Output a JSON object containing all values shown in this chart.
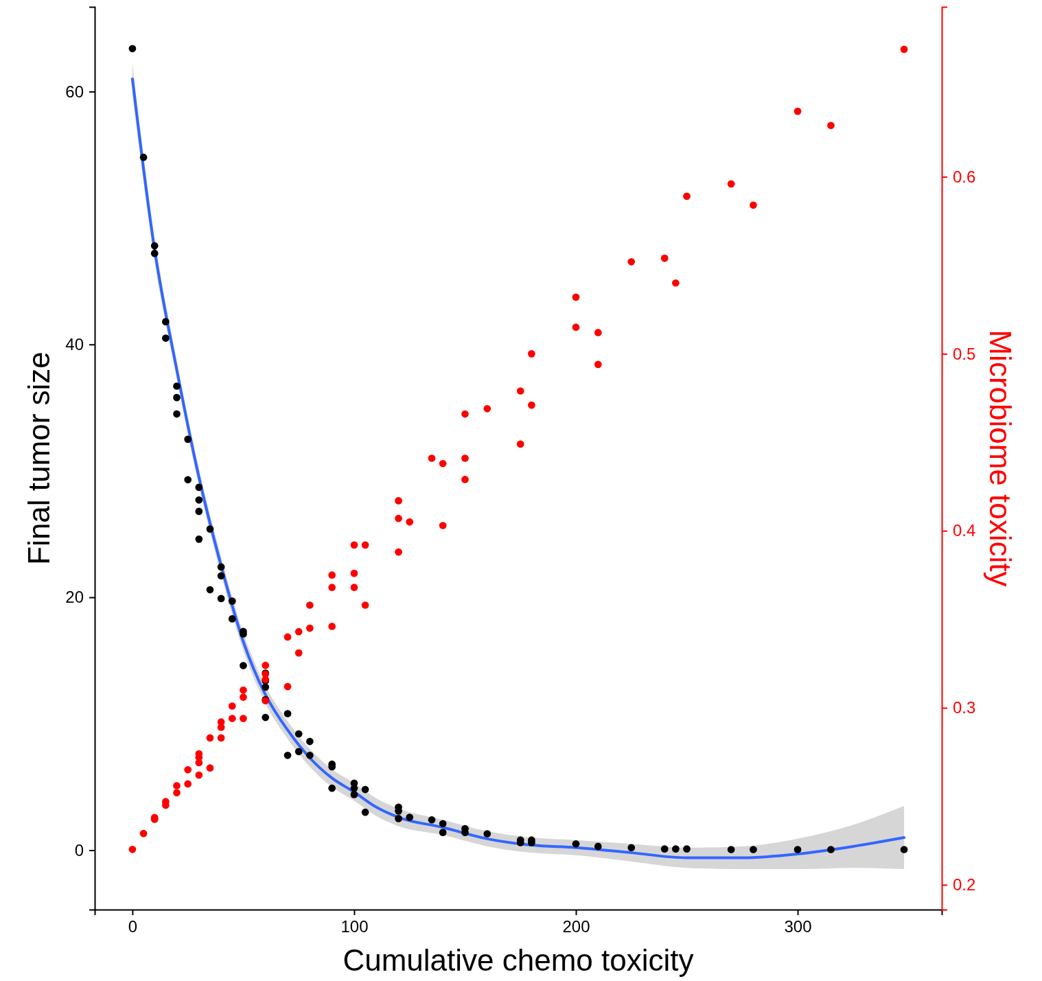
{
  "chart_data": {
    "type": "scatter",
    "xlabel": "Cumulative chemo toxicity",
    "ylabel": "Final tumor size",
    "y2label": "Microbiome toxicity",
    "xlim": [
      -17,
      365
    ],
    "xticks": [
      0,
      100,
      200,
      300
    ],
    "ylim": [
      -4.7,
      66.7
    ],
    "yticks": [
      0,
      20,
      40,
      60
    ],
    "y2lim": [
      0.186,
      0.696
    ],
    "y2ticks": [
      0.2,
      0.3,
      0.4,
      0.5,
      0.6
    ],
    "grid": false,
    "series": [
      {
        "marker": "circle",
        "color": "#000000",
        "x": [
          0,
          5,
          10,
          10,
          15,
          15,
          20,
          20,
          20,
          25,
          25,
          30,
          30,
          30,
          30,
          35,
          35,
          40,
          40,
          40,
          45,
          45,
          50,
          50,
          50,
          60,
          60,
          60,
          60,
          60,
          70,
          70,
          75,
          75,
          80,
          80,
          90,
          90,
          90,
          100,
          100,
          100,
          105,
          105,
          120,
          120,
          120,
          125,
          135,
          140,
          140,
          150,
          150,
          160,
          175,
          175,
          180,
          180,
          200,
          210,
          225,
          240,
          245,
          250,
          270,
          280,
          300,
          315,
          348
        ],
        "values": [
          63.4,
          54.8,
          47.8,
          47.2,
          41.8,
          40.5,
          36.7,
          35.8,
          34.5,
          32.5,
          29.3,
          28.7,
          27.7,
          26.8,
          24.6,
          25.4,
          20.6,
          22.4,
          21.7,
          19.9,
          19.7,
          18.3,
          17.3,
          17.1,
          14.6,
          14.0,
          13.4,
          12.9,
          11.9,
          10.5,
          10.8,
          7.5,
          9.2,
          7.8,
          8.6,
          7.5,
          6.8,
          6.6,
          4.9,
          5.3,
          4.9,
          4.4,
          4.8,
          3.0,
          3.4,
          3.1,
          2.5,
          2.6,
          2.4,
          2.1,
          1.4,
          1.7,
          1.4,
          1.3,
          0.8,
          0.6,
          0.8,
          0.6,
          0.5,
          0.3,
          0.2,
          0.1,
          0.1,
          0.1,
          0.05,
          0.05,
          0.05,
          0.05,
          0.05
        ]
      },
      {
        "marker": "circle",
        "color": "#ff0000",
        "axis": "y2",
        "x": [
          0,
          5,
          10,
          10,
          15,
          15,
          20,
          20,
          25,
          25,
          30,
          30,
          30,
          30,
          35,
          35,
          40,
          40,
          40,
          45,
          45,
          50,
          50,
          50,
          60,
          60,
          60,
          60,
          70,
          70,
          75,
          75,
          80,
          80,
          90,
          90,
          90,
          100,
          100,
          100,
          105,
          105,
          120,
          120,
          120,
          125,
          135,
          140,
          140,
          150,
          150,
          150,
          160,
          175,
          175,
          180,
          180,
          200,
          200,
          210,
          210,
          225,
          240,
          245,
          250,
          270,
          280,
          300,
          315,
          348
        ],
        "values": [
          0.22,
          0.229,
          0.238,
          0.237,
          0.247,
          0.245,
          0.256,
          0.252,
          0.265,
          0.257,
          0.274,
          0.272,
          0.269,
          0.262,
          0.283,
          0.266,
          0.292,
          0.289,
          0.283,
          0.301,
          0.294,
          0.31,
          0.306,
          0.294,
          0.324,
          0.319,
          0.316,
          0.304,
          0.34,
          0.312,
          0.343,
          0.331,
          0.358,
          0.345,
          0.375,
          0.368,
          0.346,
          0.392,
          0.376,
          0.368,
          0.392,
          0.358,
          0.417,
          0.407,
          0.388,
          0.405,
          0.441,
          0.438,
          0.403,
          0.466,
          0.441,
          0.429,
          0.469,
          0.479,
          0.449,
          0.5,
          0.471,
          0.532,
          0.515,
          0.512,
          0.494,
          0.552,
          0.554,
          0.54,
          0.589,
          0.596,
          0.584,
          0.637,
          0.629,
          0.672
        ]
      },
      {
        "type": "line",
        "marker": "none",
        "color": "#3366ff",
        "x": [
          0,
          10,
          20,
          30,
          40,
          50,
          60,
          70,
          80,
          90,
          100,
          110,
          120,
          140,
          160,
          180,
          200,
          225,
          250,
          275,
          300,
          325,
          348
        ],
        "values": [
          61.0,
          47.5,
          38.0,
          29.5,
          22.5,
          16.5,
          12.3,
          9.5,
          7.3,
          5.7,
          4.6,
          3.4,
          2.6,
          1.8,
          0.9,
          0.4,
          0.2,
          -0.2,
          -0.6,
          -0.6,
          -0.3,
          0.3,
          1.0
        ],
        "lower": [
          59.8,
          46.6,
          37.3,
          28.8,
          21.8,
          15.8,
          11.6,
          8.8,
          6.6,
          5.0,
          3.9,
          2.7,
          1.9,
          1.2,
          0.3,
          -0.2,
          -0.4,
          -0.9,
          -1.4,
          -1.5,
          -1.5,
          -1.4,
          -1.5
        ],
        "upper": [
          62.2,
          48.4,
          38.7,
          30.2,
          23.2,
          17.2,
          13.0,
          10.2,
          8.0,
          6.4,
          5.3,
          4.1,
          3.3,
          2.4,
          1.5,
          1.0,
          0.8,
          0.5,
          0.2,
          0.3,
          0.9,
          2.0,
          3.5
        ]
      }
    ]
  }
}
